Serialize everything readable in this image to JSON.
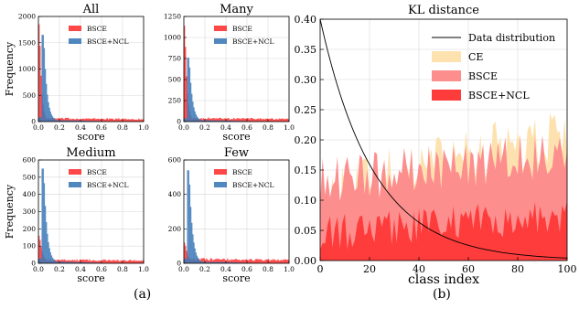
{
  "panel_labels": [
    "(a)",
    "(b)"
  ],
  "chart_data": [
    {
      "type": "bar",
      "title": "All",
      "xlabel": "score",
      "ylabel": "Frequency",
      "xlim": [
        0.0,
        1.0
      ],
      "ylim": [
        0,
        2000
      ],
      "xticks": [
        "0.0",
        "0.2",
        "0.4",
        "0.6",
        "0.8",
        "1.0"
      ],
      "yticks": [
        "0",
        "500",
        "1000",
        "1500",
        "2000"
      ],
      "legend": [
        "BSCE",
        "BSCE+NCL"
      ],
      "legend_position": "top-right",
      "grid": true,
      "series": [
        {
          "name": "BSCE",
          "color": "#ff3333",
          "peak_x": 0.01,
          "peak": 1850,
          "decay": 0.02,
          "tail": 60,
          "tail_end": 45
        },
        {
          "name": "BSCE+NCL",
          "color": "#3d7ab8",
          "peak_x": 0.05,
          "peak": 1650,
          "decay": 0.03,
          "tail": 30,
          "tail_end": 0
        }
      ]
    },
    {
      "type": "bar",
      "title": "Many",
      "xlabel": "score",
      "ylabel": "",
      "xlim": [
        0.0,
        1.0
      ],
      "ylim": [
        0,
        1250
      ],
      "xticks": [
        "0.0",
        "0.2",
        "0.4",
        "0.6",
        "0.8",
        "1.0"
      ],
      "yticks": [
        "0",
        "250",
        "500",
        "750",
        "1000",
        "1250"
      ],
      "legend": [
        "BSCE",
        "BSCE+NCL"
      ],
      "legend_position": "top-right",
      "grid": true,
      "series": [
        {
          "name": "BSCE",
          "color": "#ff3333",
          "peak_x": 0.01,
          "peak": 1140,
          "decay": 0.02,
          "tail": 40,
          "tail_end": 30
        },
        {
          "name": "BSCE+NCL",
          "color": "#3d7ab8",
          "peak_x": 0.05,
          "peak": 760,
          "decay": 0.03,
          "tail": 20,
          "tail_end": 0
        }
      ]
    },
    {
      "type": "bar",
      "title": "Medium",
      "xlabel": "score",
      "ylabel": "Frequency",
      "xlim": [
        0.0,
        1.0
      ],
      "ylim": [
        0,
        600
      ],
      "xticks": [
        "0.0",
        "0.2",
        "0.4",
        "0.6",
        "0.8",
        "1.0"
      ],
      "yticks": [
        "0",
        "100",
        "200",
        "300",
        "400",
        "500",
        "600"
      ],
      "legend": [
        "BSCE",
        "BSCE+NCL"
      ],
      "legend_position": "top-right",
      "grid": true,
      "series": [
        {
          "name": "BSCE",
          "color": "#ff3333",
          "peak_x": 0.01,
          "peak": 160,
          "decay": 0.03,
          "tail": 20,
          "tail_end": 15
        },
        {
          "name": "BSCE+NCL",
          "color": "#3d7ab8",
          "peak_x": 0.05,
          "peak": 550,
          "decay": 0.03,
          "tail": 10,
          "tail_end": 0
        }
      ]
    },
    {
      "type": "bar",
      "title": "Few",
      "xlabel": "score",
      "ylabel": "",
      "xlim": [
        0.0,
        1.0
      ],
      "ylim": [
        0,
        600
      ],
      "xticks": [
        "0.0",
        "0.2",
        "0.4",
        "0.6",
        "0.8",
        "1.0"
      ],
      "yticks": [
        "0",
        "200",
        "400",
        "600"
      ],
      "legend": [
        "BSCE",
        "BSCE+NCL"
      ],
      "legend_position": "top-right",
      "grid": true,
      "series": [
        {
          "name": "BSCE",
          "color": "#ff3333",
          "peak_x": 0.01,
          "peak": 120,
          "decay": 0.03,
          "tail": 25,
          "tail_end": 18
        },
        {
          "name": "BSCE+NCL",
          "color": "#3d7ab8",
          "peak_x": 0.05,
          "peak": 540,
          "decay": 0.03,
          "tail": 10,
          "tail_end": 0
        }
      ]
    },
    {
      "type": "area",
      "title": "KL distance",
      "xlabel": "class index",
      "ylabel": "",
      "xlim": [
        0,
        100
      ],
      "ylim": [
        0.0,
        0.4
      ],
      "xticks": [
        "0",
        "20",
        "40",
        "60",
        "80",
        "100"
      ],
      "yticks": [
        "0.00",
        "0.05",
        "0.10",
        "0.15",
        "0.20",
        "0.25",
        "0.30",
        "0.35",
        "0.40"
      ],
      "grid": true,
      "legend_position": "top-right",
      "line_series": {
        "name": "Data distribution",
        "color": "#000000",
        "start": 0.4,
        "end": 0.004
      },
      "series": [
        {
          "name": "CE",
          "color": "#fde2b0",
          "base_start": 0.11,
          "base_end": 0.21,
          "amplitude": 0.05
        },
        {
          "name": "BSCE",
          "color": "#fd8e8e",
          "base_start": 0.13,
          "base_end": 0.18,
          "amplitude": 0.04
        },
        {
          "name": "BSCE+NCL",
          "color": "#ff3c3c",
          "base_start": 0.045,
          "base_end": 0.075,
          "amplitude": 0.03
        }
      ]
    }
  ]
}
